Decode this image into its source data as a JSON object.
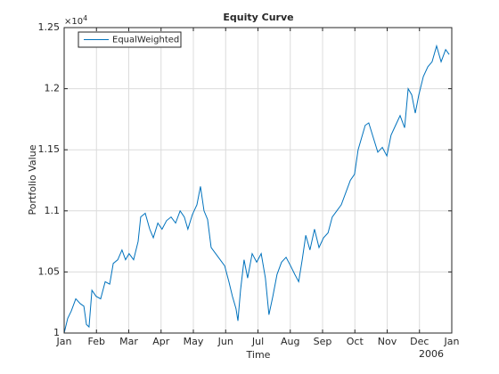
{
  "chart_data": {
    "type": "line",
    "title": "Equity Curve",
    "xlabel": "Time",
    "ylabel": "Portfolio Value",
    "x_secondary_label": "2006",
    "y_exponent": {
      "base": "×10",
      "power": "4"
    },
    "xlim": [
      0,
      12
    ],
    "xticks": [
      {
        "value": 0,
        "label": "Jan"
      },
      {
        "value": 1,
        "label": "Feb"
      },
      {
        "value": 2,
        "label": "Mar"
      },
      {
        "value": 3,
        "label": "Apr"
      },
      {
        "value": 4,
        "label": "May"
      },
      {
        "value": 5,
        "label": "Jun"
      },
      {
        "value": 6,
        "label": "Jul"
      },
      {
        "value": 7,
        "label": "Aug"
      },
      {
        "value": 8,
        "label": "Sep"
      },
      {
        "value": 9,
        "label": "Oct"
      },
      {
        "value": 10,
        "label": "Nov"
      },
      {
        "value": 11,
        "label": "Dec"
      },
      {
        "value": 12,
        "label": "Jan"
      }
    ],
    "ylim": [
      1,
      1.25
    ],
    "yticks": [
      1,
      1.05,
      1.1,
      1.15,
      1.2,
      1.25
    ],
    "grid": true,
    "legend": "upper left",
    "series": [
      {
        "name": "EqualWeighted",
        "color": "#0072bd",
        "x": [
          0.0,
          0.11,
          0.22,
          0.36,
          0.5,
          0.61,
          0.69,
          0.77,
          0.86,
          0.99,
          1.13,
          1.27,
          1.41,
          1.52,
          1.66,
          1.79,
          1.9,
          2.01,
          2.15,
          2.29,
          2.37,
          2.51,
          2.65,
          2.76,
          2.9,
          3.03,
          3.17,
          3.31,
          3.45,
          3.59,
          3.72,
          3.83,
          3.97,
          4.11,
          4.22,
          4.33,
          4.44,
          4.55,
          4.69,
          4.83,
          4.97,
          5.1,
          5.21,
          5.32,
          5.38,
          5.46,
          5.57,
          5.68,
          5.82,
          5.96,
          6.1,
          6.23,
          6.34,
          6.46,
          6.59,
          6.73,
          6.87,
          7.01,
          7.14,
          7.26,
          7.37,
          7.48,
          7.61,
          7.75,
          7.89,
          8.03,
          8.17,
          8.3,
          8.44,
          8.58,
          8.72,
          8.86,
          8.99,
          9.1,
          9.21,
          9.32,
          9.43,
          9.57,
          9.71,
          9.85,
          9.99,
          10.12,
          10.26,
          10.4,
          10.54,
          10.65,
          10.76,
          10.87,
          10.98,
          11.12,
          11.26,
          11.39,
          11.53,
          11.67,
          11.81,
          11.92
        ],
        "values": [
          1.0,
          1.012,
          1.018,
          1.028,
          1.024,
          1.022,
          1.007,
          1.005,
          1.035,
          1.03,
          1.028,
          1.042,
          1.04,
          1.057,
          1.06,
          1.068,
          1.06,
          1.065,
          1.06,
          1.075,
          1.095,
          1.098,
          1.085,
          1.078,
          1.09,
          1.085,
          1.092,
          1.095,
          1.09,
          1.1,
          1.095,
          1.085,
          1.097,
          1.105,
          1.12,
          1.1,
          1.093,
          1.07,
          1.065,
          1.06,
          1.055,
          1.042,
          1.03,
          1.02,
          1.01,
          1.035,
          1.06,
          1.045,
          1.065,
          1.058,
          1.065,
          1.045,
          1.015,
          1.03,
          1.048,
          1.058,
          1.062,
          1.055,
          1.048,
          1.042,
          1.06,
          1.08,
          1.068,
          1.085,
          1.07,
          1.078,
          1.082,
          1.095,
          1.1,
          1.105,
          1.115,
          1.125,
          1.13,
          1.15,
          1.16,
          1.17,
          1.172,
          1.16,
          1.148,
          1.152,
          1.145,
          1.162,
          1.17,
          1.178,
          1.168,
          1.2,
          1.195,
          1.18,
          1.195,
          1.21,
          1.218,
          1.222,
          1.235,
          1.222,
          1.232,
          1.228
        ]
      }
    ]
  }
}
